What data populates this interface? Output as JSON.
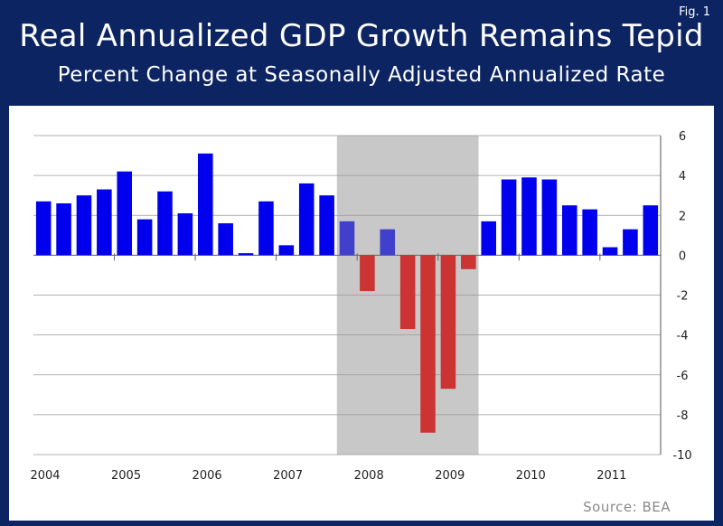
{
  "header": {
    "fig_label": "Fig. 1",
    "title": "Real Annualized GDP Growth Remains Tepid",
    "subtitle": "Percent Change at Seasonally Adjusted Annualized Rate"
  },
  "source": "Source:  BEA",
  "colors": {
    "background": "#0c2461",
    "panel": "#ffffff",
    "positive": "#0000ee",
    "recession_positive": "#4040cc",
    "negative": "#cc3333",
    "recession_shade": "#c8c8c8",
    "grid": "#999999"
  },
  "chart_data": {
    "type": "bar",
    "title": "Real Annualized GDP Growth Remains Tepid",
    "subtitle": "Percent Change at Seasonally Adjusted Annualized Rate",
    "xlabel": "",
    "ylabel": "",
    "ylim": [
      -10,
      6
    ],
    "yticks": [
      6,
      4,
      2,
      0,
      -2,
      -4,
      -6,
      -8,
      -10
    ],
    "y_axis_side": "right",
    "grid": true,
    "year_labels": [
      "2004",
      "2005",
      "2006",
      "2007",
      "2008",
      "2009",
      "2010",
      "2011"
    ],
    "quarters_per_year": 4,
    "recession_shade": {
      "from_index": 15,
      "to_index": 22
    },
    "values": [
      2.7,
      2.6,
      3.0,
      3.3,
      4.2,
      1.8,
      3.2,
      2.1,
      5.1,
      1.6,
      0.1,
      2.7,
      0.5,
      3.6,
      3.0,
      1.7,
      -1.8,
      1.3,
      -3.7,
      -8.9,
      -6.7,
      -0.7,
      1.7,
      3.8,
      3.9,
      3.8,
      2.5,
      2.3,
      0.4,
      1.3,
      2.5
    ]
  }
}
